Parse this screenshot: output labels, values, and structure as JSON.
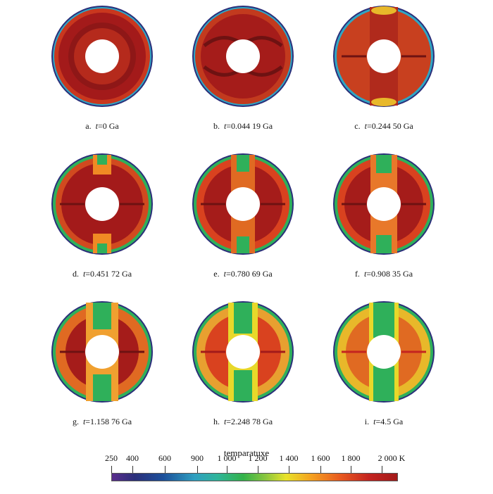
{
  "panels": [
    {
      "letter": "a.",
      "var": "t",
      "value": "=0 Ga"
    },
    {
      "letter": "b.",
      "var": "t",
      "value": "=0.044 19 Ga"
    },
    {
      "letter": "c.",
      "var": "t",
      "value": "=0.244 50 Ga"
    },
    {
      "letter": "d.",
      "var": "t",
      "value": "=0.451 72 Ga"
    },
    {
      "letter": "e.",
      "var": "t",
      "value": "=0.780 69 Ga"
    },
    {
      "letter": "f.",
      "var": "t",
      "value": "=0.908 35 Ga"
    },
    {
      "letter": "g.",
      "var": "t",
      "value": "=1.158 76 Ga"
    },
    {
      "letter": "h.",
      "var": "t",
      "value": "=2.248 78 Ga"
    },
    {
      "letter": "i.",
      "var": "t",
      "value": "=4.5 Ga"
    }
  ],
  "legend": {
    "title": "temparatuxe",
    "ticks": [
      "250",
      "400",
      "600",
      "900",
      "1 000",
      "1 200",
      "1 400",
      "1 600",
      "1 800",
      "2 000 K"
    ]
  },
  "colors": {
    "hot": "#a31a1a",
    "warm": "#d9421f",
    "orange": "#f08a24",
    "yellow": "#e8d82a",
    "green": "#2fb05a",
    "cyan": "#2fa6c4",
    "cold": "#2b2f7a"
  }
}
